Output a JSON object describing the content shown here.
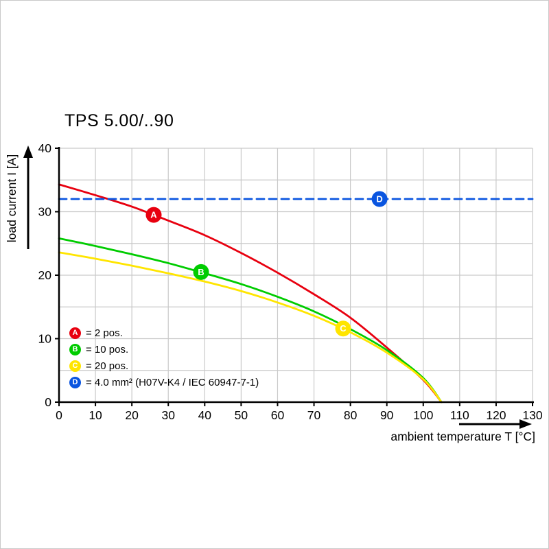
{
  "page": {
    "background": "#ffffff",
    "border_color": "#c9c9c9"
  },
  "chart_data": {
    "type": "line",
    "title": "TPS 5.00/..90",
    "xlabel": "ambient temperature T [°C]",
    "ylabel": "load current I [A]",
    "xlim": [
      0,
      130
    ],
    "ylim": [
      0,
      40
    ],
    "x_ticks": [
      0,
      10,
      20,
      30,
      40,
      50,
      60,
      70,
      80,
      90,
      100,
      110,
      120,
      130
    ],
    "y_ticks": [
      0,
      10,
      20,
      30,
      40
    ],
    "x_grid_step": 10,
    "y_grid_step": 5,
    "grid": true,
    "grid_color": "#c9c9c9",
    "axis_color": "#000000",
    "legend_position": "inside-bottom-left",
    "series": [
      {
        "id": "A",
        "name": "2 pos.",
        "color": "#e8000f",
        "line_style": "solid",
        "marker": {
          "x": 26,
          "y": 29.5
        },
        "points": [
          [
            0,
            34.3
          ],
          [
            10,
            32.6
          ],
          [
            20,
            30.8
          ],
          [
            30,
            28.6
          ],
          [
            40,
            26.3
          ],
          [
            50,
            23.5
          ],
          [
            60,
            20.4
          ],
          [
            70,
            17.0
          ],
          [
            80,
            13.3
          ],
          [
            90,
            8.6
          ],
          [
            100,
            3.5
          ],
          [
            105,
            0
          ]
        ]
      },
      {
        "id": "B",
        "name": "10 pos.",
        "color": "#00cc00",
        "line_style": "solid",
        "marker": {
          "x": 39,
          "y": 20.5
        },
        "points": [
          [
            0,
            25.8
          ],
          [
            10,
            24.6
          ],
          [
            20,
            23.3
          ],
          [
            30,
            21.9
          ],
          [
            40,
            20.3
          ],
          [
            50,
            18.6
          ],
          [
            60,
            16.6
          ],
          [
            70,
            14.3
          ],
          [
            80,
            11.5
          ],
          [
            90,
            8.2
          ],
          [
            100,
            3.8
          ],
          [
            105,
            0
          ]
        ]
      },
      {
        "id": "C",
        "name": "20 pos.",
        "color": "#ffe500",
        "line_style": "solid",
        "marker": {
          "x": 78,
          "y": 11.6
        },
        "points": [
          [
            0,
            23.6
          ],
          [
            10,
            22.6
          ],
          [
            20,
            21.5
          ],
          [
            30,
            20.3
          ],
          [
            40,
            19.0
          ],
          [
            50,
            17.5
          ],
          [
            60,
            15.7
          ],
          [
            70,
            13.6
          ],
          [
            80,
            11.0
          ],
          [
            90,
            7.8
          ],
          [
            100,
            3.6
          ],
          [
            105,
            0
          ]
        ]
      },
      {
        "id": "D",
        "name": "4.0 mm² (H07V-K4 / IEC 60947-7-1)",
        "color": "#0a55e0",
        "line_style": "dashed",
        "marker": {
          "x": 88,
          "y": 32
        },
        "points": [
          [
            0,
            32
          ],
          [
            130,
            32
          ]
        ]
      }
    ],
    "legend": [
      {
        "id": "A",
        "label": "= 2 pos."
      },
      {
        "id": "B",
        "label": "= 10 pos."
      },
      {
        "id": "C",
        "label": "= 20 pos."
      },
      {
        "id": "D",
        "label": "= 4.0 mm² (H07V-K4 / IEC 60947-7-1)"
      }
    ]
  }
}
